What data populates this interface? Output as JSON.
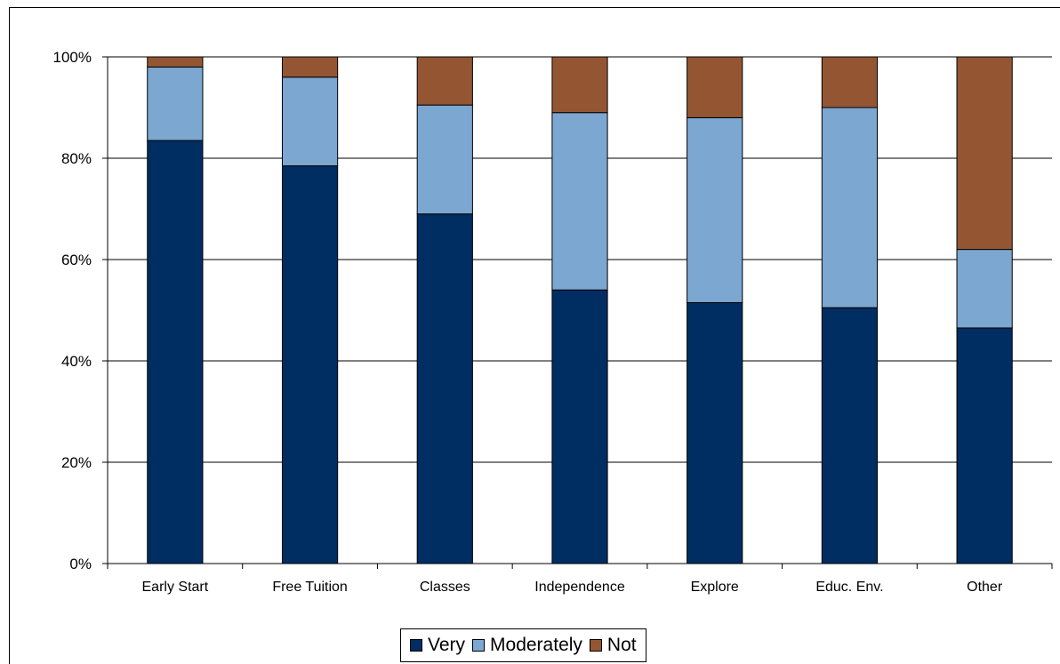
{
  "chart_data": {
    "type": "bar",
    "stacked": true,
    "percent_stacked": true,
    "categories": [
      "Early Start",
      "Free Tuition",
      "Classes",
      "Independence",
      "Explore",
      "Educ. Env.",
      "Other"
    ],
    "series": [
      {
        "name": "Very",
        "color": "#002d62",
        "values": [
          83.5,
          78.5,
          69,
          54,
          51.5,
          50.5,
          46.5
        ]
      },
      {
        "name": "Moderately",
        "color": "#7ba7d0",
        "values": [
          14.5,
          17.5,
          21.5,
          35,
          36.5,
          39.5,
          15.5
        ]
      },
      {
        "name": "Not",
        "color": "#945632",
        "values": [
          2,
          4,
          9.5,
          11,
          12,
          10,
          38
        ]
      }
    ],
    "y_ticks": [
      "0%",
      "20%",
      "40%",
      "60%",
      "80%",
      "100%"
    ],
    "ylim": [
      0,
      100
    ],
    "grid": true,
    "legend_position": "bottom"
  }
}
